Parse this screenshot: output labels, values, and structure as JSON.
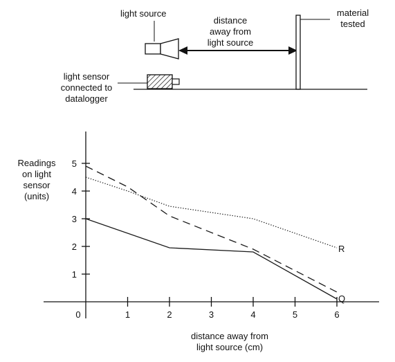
{
  "apparatus": {
    "light_source_label": "light  source",
    "distance_label_lines": [
      "distance",
      "away from",
      "light source"
    ],
    "material_label_lines": [
      "material",
      "tested"
    ],
    "sensor_label_lines": [
      "light sensor",
      "connected to",
      "datalogger"
    ]
  },
  "chart_data": {
    "type": "line",
    "ylabel_lines": [
      "Readings",
      "on light",
      "sensor",
      "(units)"
    ],
    "xlabel_lines": [
      "distance away from",
      "light source (cm)"
    ],
    "xlim": [
      0,
      6.6
    ],
    "ylim": [
      0,
      6
    ],
    "x_ticks": [
      0,
      1,
      2,
      3,
      4,
      5,
      6
    ],
    "y_ticks": [
      1,
      2,
      3,
      4,
      5
    ],
    "series": [
      {
        "name": "Q",
        "style": "solid",
        "points": [
          [
            0,
            3.0
          ],
          [
            2,
            1.95
          ],
          [
            4,
            1.8
          ],
          [
            6,
            0.1
          ]
        ]
      },
      {
        "name": "",
        "style": "dashed",
        "points": [
          [
            0,
            4.9
          ],
          [
            1,
            4.15
          ],
          [
            2,
            3.1
          ],
          [
            4,
            1.9
          ],
          [
            6,
            0.35
          ]
        ]
      },
      {
        "name": "R",
        "style": "dotted",
        "points": [
          [
            0,
            4.5
          ],
          [
            1,
            4.0
          ],
          [
            2,
            3.45
          ],
          [
            4,
            3.0
          ],
          [
            6,
            1.95
          ]
        ]
      }
    ],
    "grid": false,
    "colors": {
      "line": "#1a1a1a"
    }
  }
}
